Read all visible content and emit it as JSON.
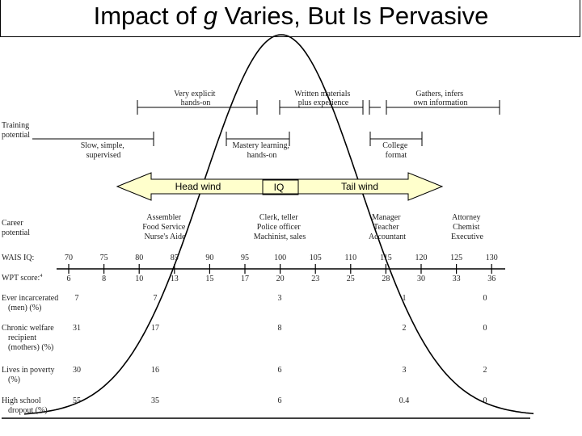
{
  "title": {
    "prefix": "Impact of ",
    "italic": "g",
    "suffix": " Varies, But Is Pervasive"
  },
  "training": {
    "label": [
      "Training",
      "potential"
    ],
    "upper": [
      {
        "lines": [
          "Very explicit",
          "hands-on"
        ]
      },
      {
        "lines": [
          "Written materials",
          "plus experience"
        ]
      },
      {
        "lines": [
          "Gathers, infers",
          "own information"
        ]
      }
    ],
    "lower": [
      {
        "lines": [
          "Slow, simple,",
          "supervised"
        ]
      },
      {
        "lines": [
          "Mastery learning,",
          "hands-on"
        ]
      },
      {
        "lines": [
          "College",
          "format"
        ]
      }
    ]
  },
  "arrow": {
    "left": "Head wind",
    "center": "IQ",
    "right": "Tail wind",
    "fill": "#ffffcc"
  },
  "career": {
    "label": [
      "Career",
      "potential"
    ],
    "groups": [
      {
        "lines": [
          "Assembler",
          "Food Service",
          "Nurse's Aide"
        ]
      },
      {
        "lines": [
          "Clerk, teller",
          "Police officer",
          "Machinist, sales"
        ]
      },
      {
        "lines": [
          "Manager",
          "Teacher",
          "Accountant"
        ]
      },
      {
        "lines": [
          "Attorney",
          "Chemist",
          "Executive"
        ]
      }
    ]
  },
  "scales": {
    "wais_label": "WAIS IQ:",
    "wpt_label": "WPT score:",
    "wpt_superscript": "4",
    "wais_values": [
      "70",
      "75",
      "80",
      "85",
      "90",
      "95",
      "100",
      "105",
      "110",
      "115",
      "120",
      "125",
      "130"
    ],
    "wpt_values": [
      "6",
      "8",
      "10",
      "13",
      "15",
      "17",
      "20",
      "23",
      "25",
      "28",
      "30",
      "33",
      "36"
    ]
  },
  "outcomes": [
    {
      "label": [
        "Ever incarcerated",
        "(men) (%)"
      ],
      "values": [
        "7",
        "7",
        "3",
        "1",
        "0"
      ]
    },
    {
      "label": [
        "Chronic welfare",
        "recipient",
        "(mothers) (%)"
      ],
      "values": [
        "31",
        "17",
        "8",
        "2",
        "0"
      ]
    },
    {
      "label": [
        "Lives in poverty",
        "(%)"
      ],
      "values": [
        "30",
        "16",
        "6",
        "3",
        "2"
      ]
    },
    {
      "label": [
        "High school",
        "dropout (%)"
      ],
      "values": [
        "55",
        "35",
        "6",
        "0.4",
        "0"
      ]
    }
  ]
}
